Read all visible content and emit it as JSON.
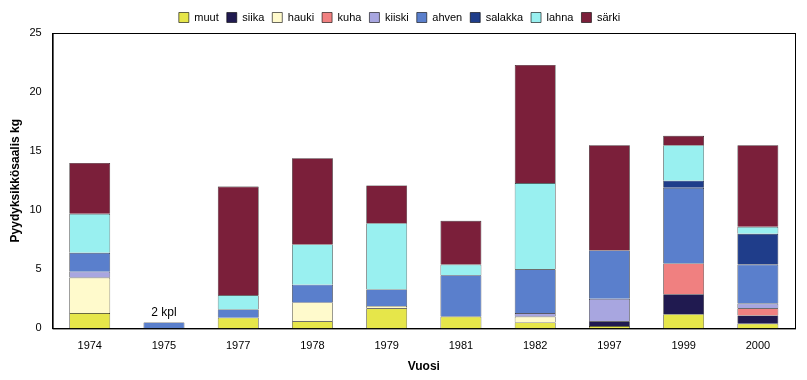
{
  "chart_data": {
    "type": "bar",
    "stacked": true,
    "x_label": "Vuosi",
    "y_label": "Pyydyksikkösaalis kg",
    "categories": [
      "1974",
      "1975",
      "1977",
      "1978",
      "1979",
      "1981",
      "1982",
      "1997",
      "1999",
      "2000"
    ],
    "series": [
      {
        "name": "muut",
        "color": "#e6e64a",
        "values": [
          1.3,
          0,
          0.9,
          0.6,
          1.7,
          1.0,
          0.5,
          0.2,
          1.2,
          0.4
        ]
      },
      {
        "name": "siika",
        "color": "#201a50",
        "values": [
          0,
          0,
          0,
          0,
          0,
          0,
          0,
          0.4,
          1.7,
          0.7
        ]
      },
      {
        "name": "hauki",
        "color": "#fffacc",
        "values": [
          3.0,
          0,
          0,
          1.6,
          0.2,
          0,
          0.5,
          0,
          0,
          0
        ]
      },
      {
        "name": "kuha",
        "color": "#f08080",
        "values": [
          0,
          0,
          0,
          0,
          0,
          0,
          0,
          0,
          2.6,
          0.6
        ]
      },
      {
        "name": "kiiski",
        "color": "#a8a6e0",
        "values": [
          0.5,
          0,
          0,
          0,
          0,
          0,
          0.3,
          1.9,
          0,
          0.4
        ]
      },
      {
        "name": "ahven",
        "color": "#5a7fcc",
        "values": [
          1.6,
          0.5,
          0.7,
          1.5,
          1.4,
          3.5,
          3.7,
          4.1,
          6.4,
          3.3
        ]
      },
      {
        "name": "salakka",
        "color": "#1f3d8a",
        "values": [
          0,
          0,
          0,
          0,
          0,
          0,
          0,
          0,
          0.6,
          2.6
        ]
      },
      {
        "name": "lahna",
        "color": "#99f0f0",
        "values": [
          3.3,
          0,
          1.2,
          3.4,
          5.6,
          0.9,
          7.3,
          0,
          3.0,
          0.6
        ]
      },
      {
        "name": "särki",
        "color": "#7b1f3a",
        "values": [
          4.3,
          0,
          9.2,
          7.3,
          3.2,
          3.7,
          10.0,
          8.9,
          0.8,
          6.9
        ]
      }
    ],
    "annotations": [
      {
        "category": "1975",
        "text": "2 kpl"
      }
    ],
    "ylim": [
      0,
      25
    ],
    "yticks": [
      0,
      5,
      10,
      15,
      20,
      25
    ],
    "grid": false,
    "legend": "top"
  }
}
